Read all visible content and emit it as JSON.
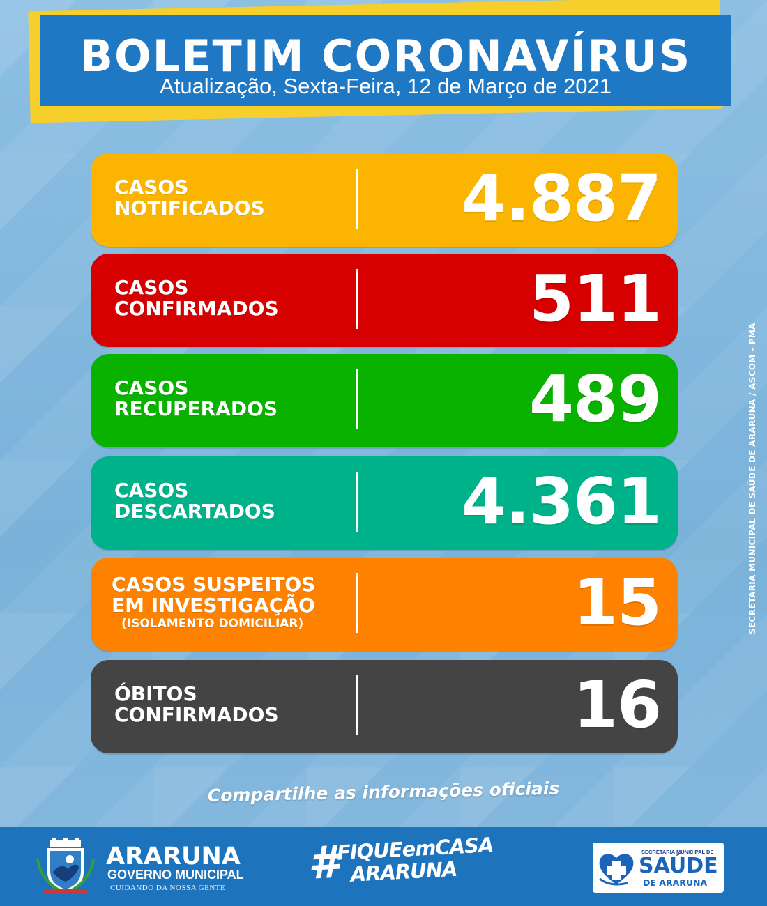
{
  "header": {
    "title": "BOLETIM CORONAVÍRUS",
    "subtitle": "Atualização, Sexta-Feira, 12 de Março de 2021"
  },
  "stats": [
    {
      "line1": "CASOS",
      "line2": "NOTIFICADOS",
      "value": "4.887",
      "color": "#fbb400"
    },
    {
      "line1": "CASOS",
      "line2": "CONFIRMADOS",
      "value": "511",
      "color": "#d60000"
    },
    {
      "line1": "CASOS",
      "line2": "RECUPERADOS",
      "value": "489",
      "color": "#0ab200"
    },
    {
      "line1": "CASOS",
      "line2": "DESCARTADOS",
      "value": "4.361",
      "color": "#00b289"
    },
    {
      "line1": "CASOS SUSPEITOS",
      "line2": "EM INVESTIGAÇÃO",
      "line3": "(ISOLAMENTO DOMICILIAR)",
      "value": "15",
      "color": "#ff8100"
    },
    {
      "line1": "ÓBITOS",
      "line2": "CONFIRMADOS",
      "value": "16",
      "color": "#444444"
    }
  ],
  "share_text": "Compartilhe as informações oficiais",
  "side_credit": "SECRETARIA MUNICIPAL DE SAÚDE DE ARARUNA / ASCOM - PMA",
  "footer": {
    "city": "ARARUNA",
    "gov": "GOVERNO MUNICIPAL",
    "tagline": "CUIDANDO DA NOSSA GENTE",
    "fique_hash": "#",
    "fique_line1": "FIQUEemCASA",
    "fique_line2": "ARARUNA",
    "saude_top": "SECRETARIA MUNICIPAL DE",
    "saude_big": "SAÚDE",
    "saude_sub": "DE ARARUNA"
  },
  "icons": {
    "crest": "araruna-crest-icon",
    "saude": "heart-health-icon"
  }
}
